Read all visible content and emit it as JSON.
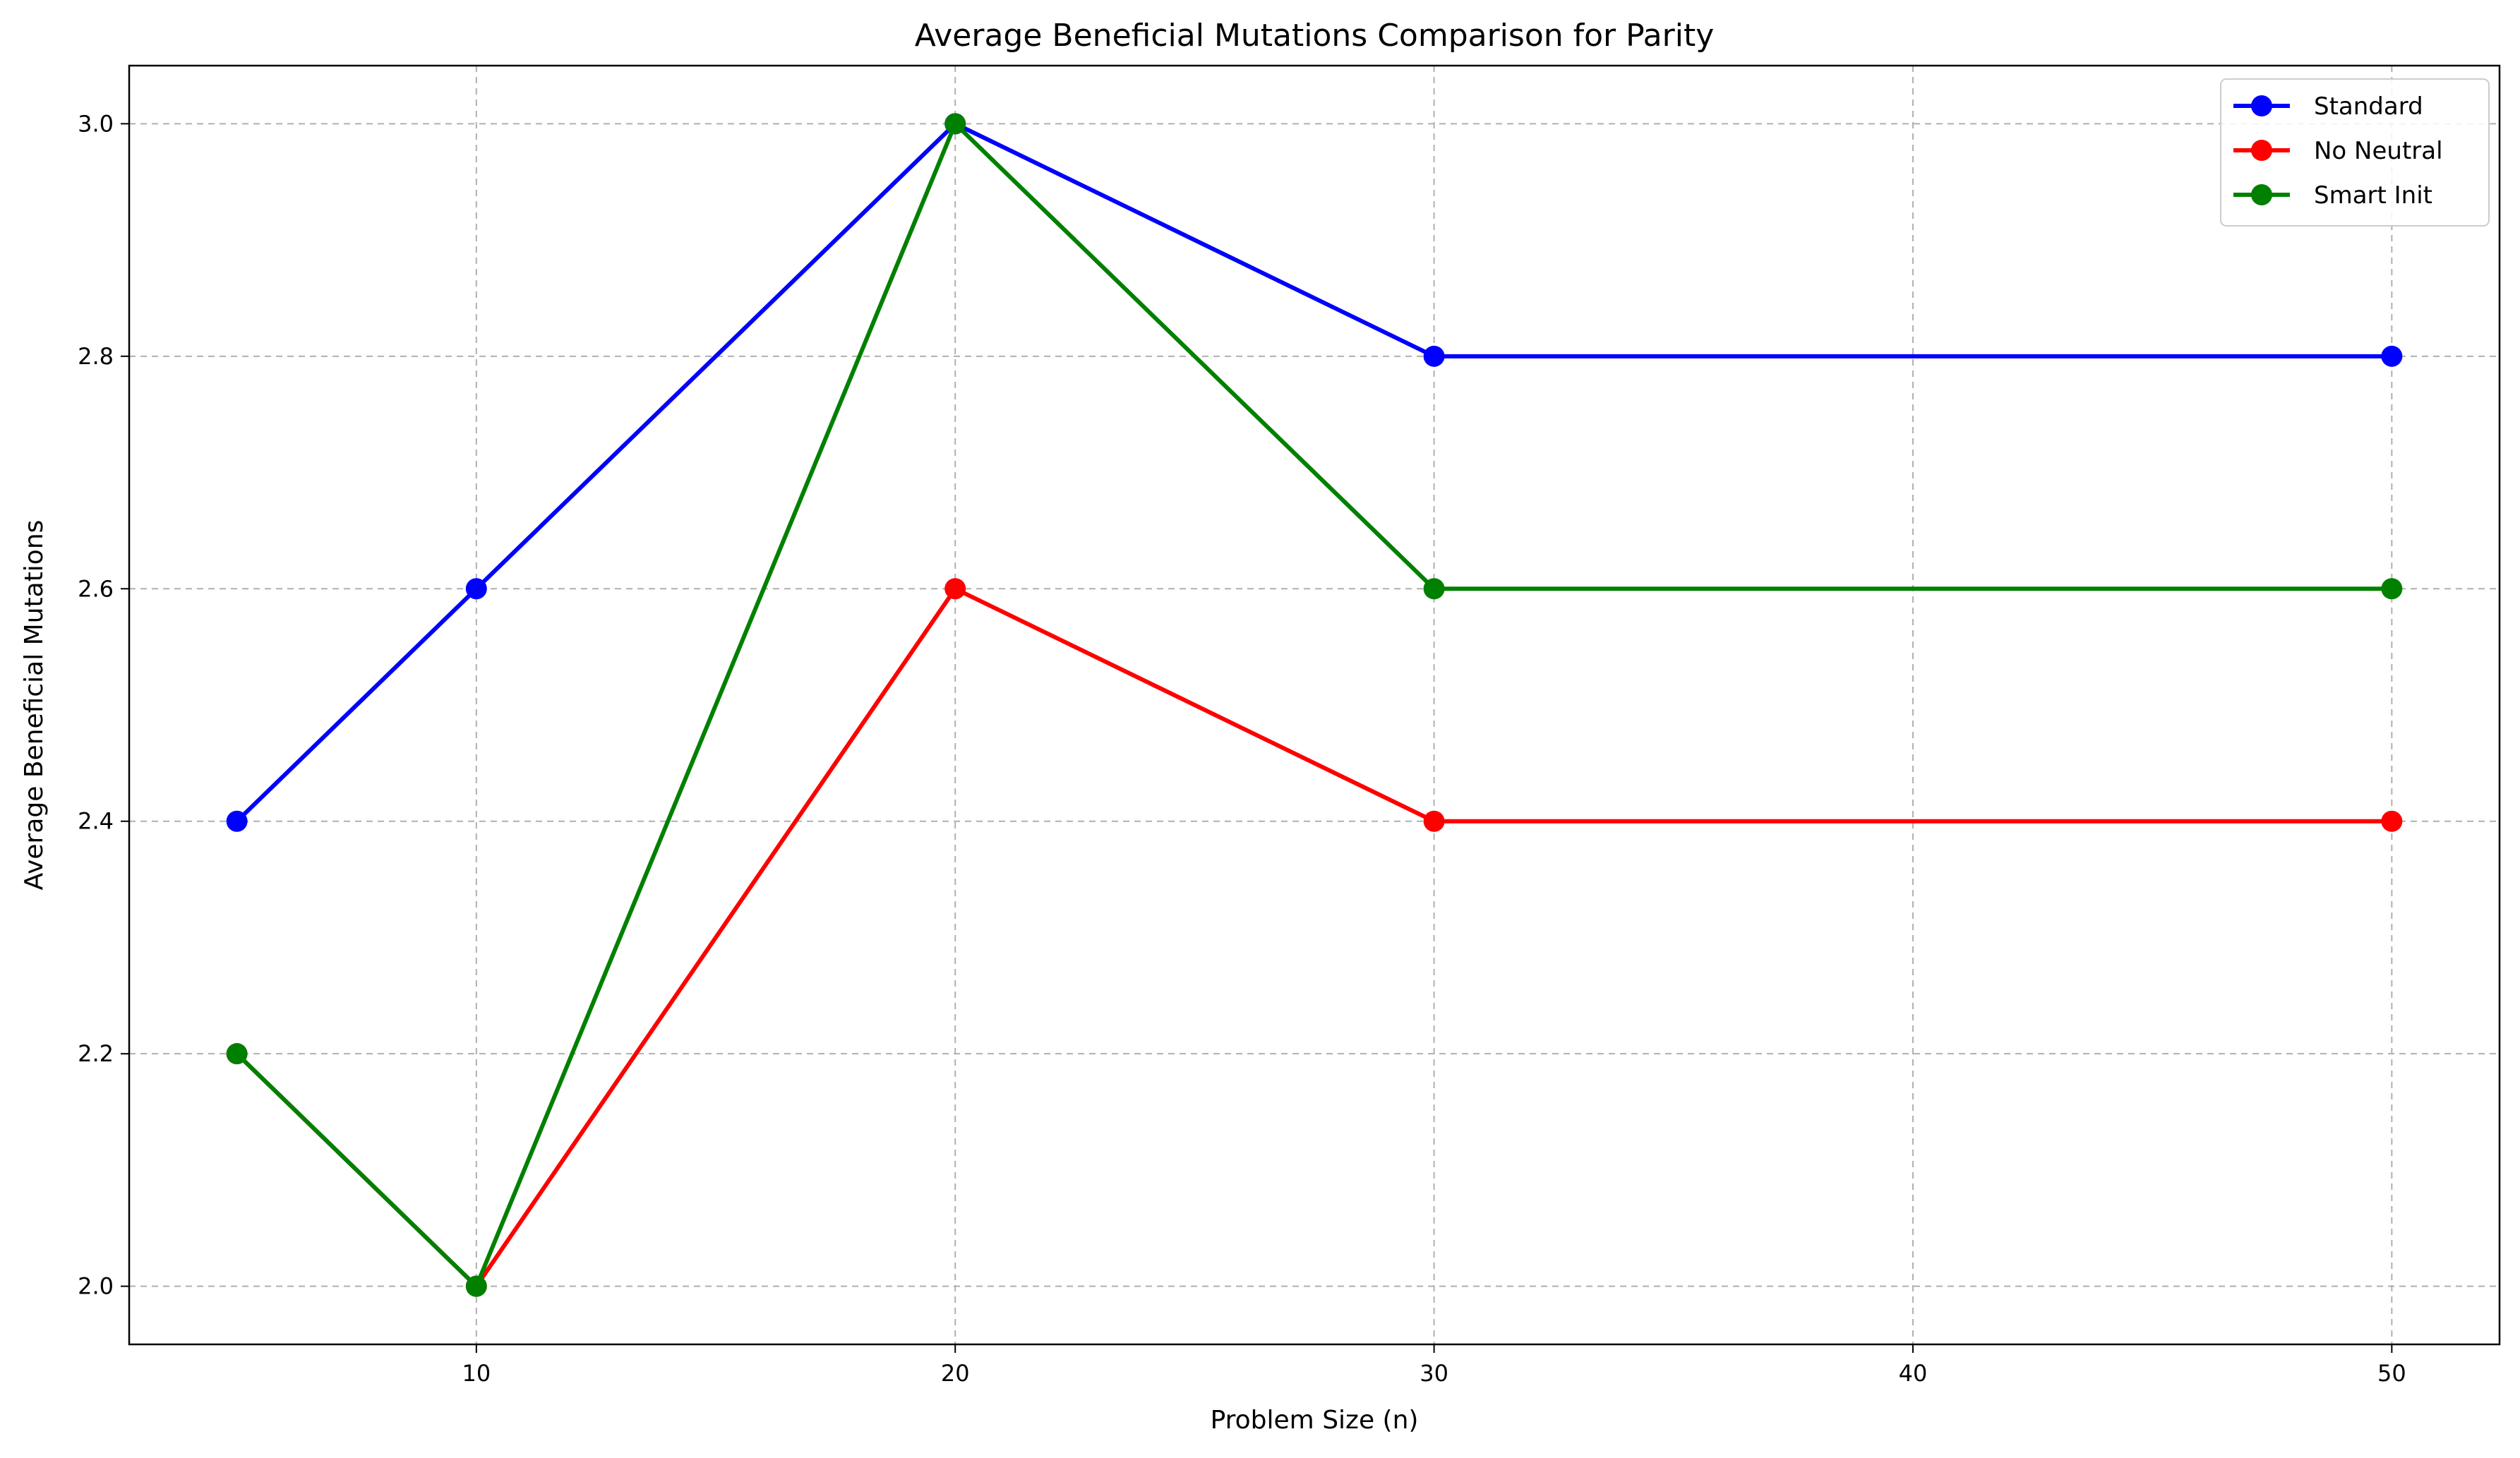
{
  "chart_data": {
    "type": "line",
    "title": "Average Beneficial Mutations Comparison for Parity",
    "xlabel": "Problem Size (n)",
    "ylabel": "Average Beneficial Mutations",
    "x": [
      5,
      10,
      20,
      30,
      50
    ],
    "xlim": [
      2.75,
      52.25
    ],
    "ylim": [
      1.95,
      3.05
    ],
    "xticks": [
      10,
      20,
      30,
      40,
      50
    ],
    "xtick_labels": [
      "10",
      "20",
      "30",
      "40",
      "50"
    ],
    "yticks": [
      2.0,
      2.2,
      2.4,
      2.6,
      2.8,
      3.0
    ],
    "ytick_labels": [
      "2.0",
      "2.2",
      "2.4",
      "2.6",
      "2.8",
      "3.0"
    ],
    "grid": true,
    "legend_position": "top-right",
    "series": [
      {
        "name": "Standard",
        "color": "#0000ff",
        "values": [
          2.4,
          2.6,
          3.0,
          2.8,
          2.8
        ]
      },
      {
        "name": "No Neutral",
        "color": "#ff0000",
        "values": [
          2.2,
          2.0,
          2.6,
          2.4,
          2.4
        ]
      },
      {
        "name": "Smart Init",
        "color": "#008000",
        "values": [
          2.2,
          2.0,
          3.0,
          2.6,
          2.6
        ]
      }
    ]
  }
}
